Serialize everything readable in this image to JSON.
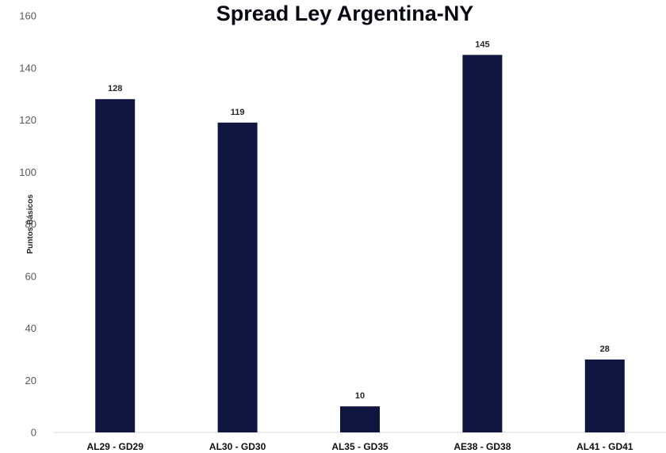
{
  "chart_data": {
    "type": "bar",
    "title": "Spread Ley Argentina-NY",
    "xlabel": "",
    "ylabel": "Puntos Básicos",
    "categories": [
      "AL29 - GD29",
      "AL30 - GD30",
      "AL35 - GD35",
      "AE38 - GD38",
      "AL41 - GD41"
    ],
    "values": [
      128,
      119,
      10,
      145,
      28
    ],
    "data_labels": [
      "128",
      "119",
      "10",
      "145",
      "28"
    ],
    "ylim": [
      0,
      160
    ],
    "yticks": [
      0,
      20,
      40,
      60,
      80,
      100,
      120,
      140,
      160
    ],
    "ytick_labels": [
      "0",
      "20",
      "40",
      "60",
      "80",
      "100",
      "120",
      "140",
      "160"
    ],
    "grid": false,
    "legend": "none",
    "bar_color": "#111641"
  }
}
